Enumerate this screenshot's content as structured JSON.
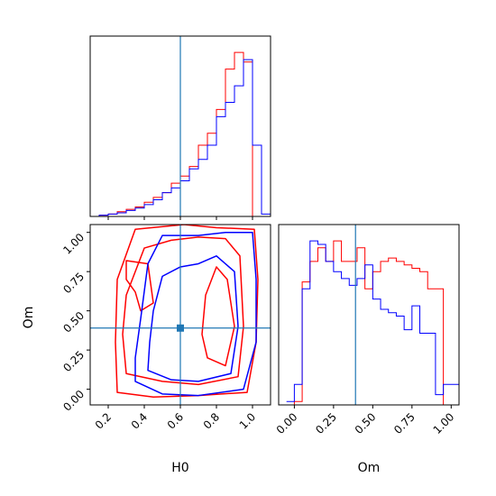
{
  "chart_data": {
    "type": "corner",
    "truth": {
      "H0": 0.6,
      "Om": 0.39
    },
    "colors": {
      "red": "#ff0000",
      "blue": "#0000ff",
      "truth": "#1f77b4"
    },
    "axes": {
      "H0": {
        "label": "H0",
        "range": [
          0.1,
          1.1
        ],
        "ticks": [
          "0.2",
          "0.4",
          "0.6",
          "0.8",
          "1.0"
        ],
        "tick_values": [
          0.2,
          0.4,
          0.6,
          0.8,
          1.0
        ]
      },
      "Om": {
        "label": "Om",
        "range": [
          -0.1,
          1.05
        ],
        "ticks": [
          "0.00",
          "0.25",
          "0.50",
          "0.75",
          "1.00"
        ],
        "tick_values": [
          0.0,
          0.25,
          0.5,
          0.75,
          1.0
        ]
      }
    },
    "hist_H0": {
      "bins": [
        0.1,
        0.15,
        0.2,
        0.25,
        0.3,
        0.35,
        0.4,
        0.45,
        0.5,
        0.55,
        0.6,
        0.65,
        0.7,
        0.75,
        0.8,
        0.85,
        0.9,
        0.95,
        1.0,
        1.05,
        1.1
      ],
      "series": [
        {
          "color": "red",
          "values": [
            0,
            0.5,
            1.0,
            2.0,
            3.0,
            4.0,
            6.0,
            8.0,
            10.0,
            14.0,
            17.0,
            21.0,
            30.0,
            35.0,
            45.0,
            62.0,
            69.0,
            65.0,
            0,
            0
          ]
        },
        {
          "color": "blue",
          "values": [
            0,
            0.5,
            1.0,
            1.5,
            2.5,
            3.5,
            5.0,
            7.0,
            10.0,
            12.0,
            15.0,
            20.0,
            24.0,
            30.0,
            42.0,
            48.0,
            55.0,
            66.0,
            30.0,
            1.0
          ]
        }
      ]
    },
    "hist_Om": {
      "bins": [
        -0.05,
        0.0,
        0.05,
        0.1,
        0.15,
        0.2,
        0.25,
        0.3,
        0.35,
        0.4,
        0.45,
        0.5,
        0.55,
        0.6,
        0.65,
        0.7,
        0.75,
        0.8,
        0.85,
        0.9,
        0.95,
        1.0,
        1.05
      ],
      "series": [
        {
          "color": "red",
          "values": [
            0,
            0.5,
            18.0,
            21.0,
            23.0,
            21.0,
            24.0,
            21.0,
            21.0,
            23.0,
            17.0,
            19.5,
            21.0,
            21.5,
            21.0,
            20.5,
            20.0,
            19.5,
            17.0,
            17.0,
            0,
            0
          ]
        },
        {
          "color": "blue",
          "values": [
            0.5,
            3.0,
            17.0,
            24.0,
            23.5,
            21.0,
            19.5,
            18.5,
            17.5,
            18.5,
            20.5,
            15.5,
            14.0,
            13.5,
            13.0,
            11.0,
            14.5,
            10.5,
            10.5,
            1.5,
            3.0,
            3.0
          ]
        }
      ]
    },
    "contours_2d": [
      {
        "color": "red",
        "level": "outer",
        "points": [
          [
            0.25,
            -0.02
          ],
          [
            0.45,
            -0.05
          ],
          [
            0.7,
            -0.04
          ],
          [
            0.97,
            -0.02
          ],
          [
            1.02,
            0.3
          ],
          [
            1.03,
            0.7
          ],
          [
            1.01,
            1.02
          ],
          [
            0.8,
            1.03
          ],
          [
            0.62,
            1.05
          ],
          [
            0.35,
            1.02
          ],
          [
            0.25,
            0.7
          ],
          [
            0.24,
            0.3
          ]
        ]
      },
      {
        "color": "red",
        "level": "inner",
        "points": [
          [
            0.3,
            0.1
          ],
          [
            0.5,
            0.05
          ],
          [
            0.7,
            0.03
          ],
          [
            0.92,
            0.08
          ],
          [
            0.95,
            0.4
          ],
          [
            0.93,
            0.85
          ],
          [
            0.85,
            0.96
          ],
          [
            0.7,
            0.97
          ],
          [
            0.55,
            0.95
          ],
          [
            0.4,
            0.9
          ],
          [
            0.3,
            0.6
          ],
          [
            0.28,
            0.35
          ]
        ]
      },
      {
        "color": "red",
        "level": "core-left",
        "points": [
          [
            0.3,
            0.82
          ],
          [
            0.42,
            0.8
          ],
          [
            0.45,
            0.55
          ],
          [
            0.38,
            0.5
          ],
          [
            0.35,
            0.62
          ],
          [
            0.3,
            0.7
          ]
        ]
      },
      {
        "color": "red",
        "level": "core-right",
        "points": [
          [
            0.75,
            0.2
          ],
          [
            0.85,
            0.15
          ],
          [
            0.9,
            0.4
          ],
          [
            0.86,
            0.7
          ],
          [
            0.8,
            0.78
          ],
          [
            0.74,
            0.6
          ],
          [
            0.72,
            0.35
          ]
        ]
      },
      {
        "color": "blue",
        "level": "outer",
        "points": [
          [
            0.35,
            0.05
          ],
          [
            0.5,
            -0.03
          ],
          [
            0.7,
            -0.04
          ],
          [
            0.95,
            0.0
          ],
          [
            1.02,
            0.3
          ],
          [
            1.02,
            0.7
          ],
          [
            1.0,
            1.0
          ],
          [
            0.85,
            1.0
          ],
          [
            0.7,
            0.98
          ],
          [
            0.5,
            0.98
          ],
          [
            0.42,
            0.8
          ],
          [
            0.38,
            0.45
          ],
          [
            0.35,
            0.2
          ]
        ]
      },
      {
        "color": "blue",
        "level": "inner",
        "points": [
          [
            0.42,
            0.12
          ],
          [
            0.55,
            0.06
          ],
          [
            0.7,
            0.05
          ],
          [
            0.88,
            0.1
          ],
          [
            0.92,
            0.4
          ],
          [
            0.9,
            0.75
          ],
          [
            0.8,
            0.85
          ],
          [
            0.7,
            0.8
          ],
          [
            0.6,
            0.78
          ],
          [
            0.5,
            0.72
          ],
          [
            0.45,
            0.5
          ],
          [
            0.43,
            0.3
          ]
        ]
      }
    ]
  }
}
